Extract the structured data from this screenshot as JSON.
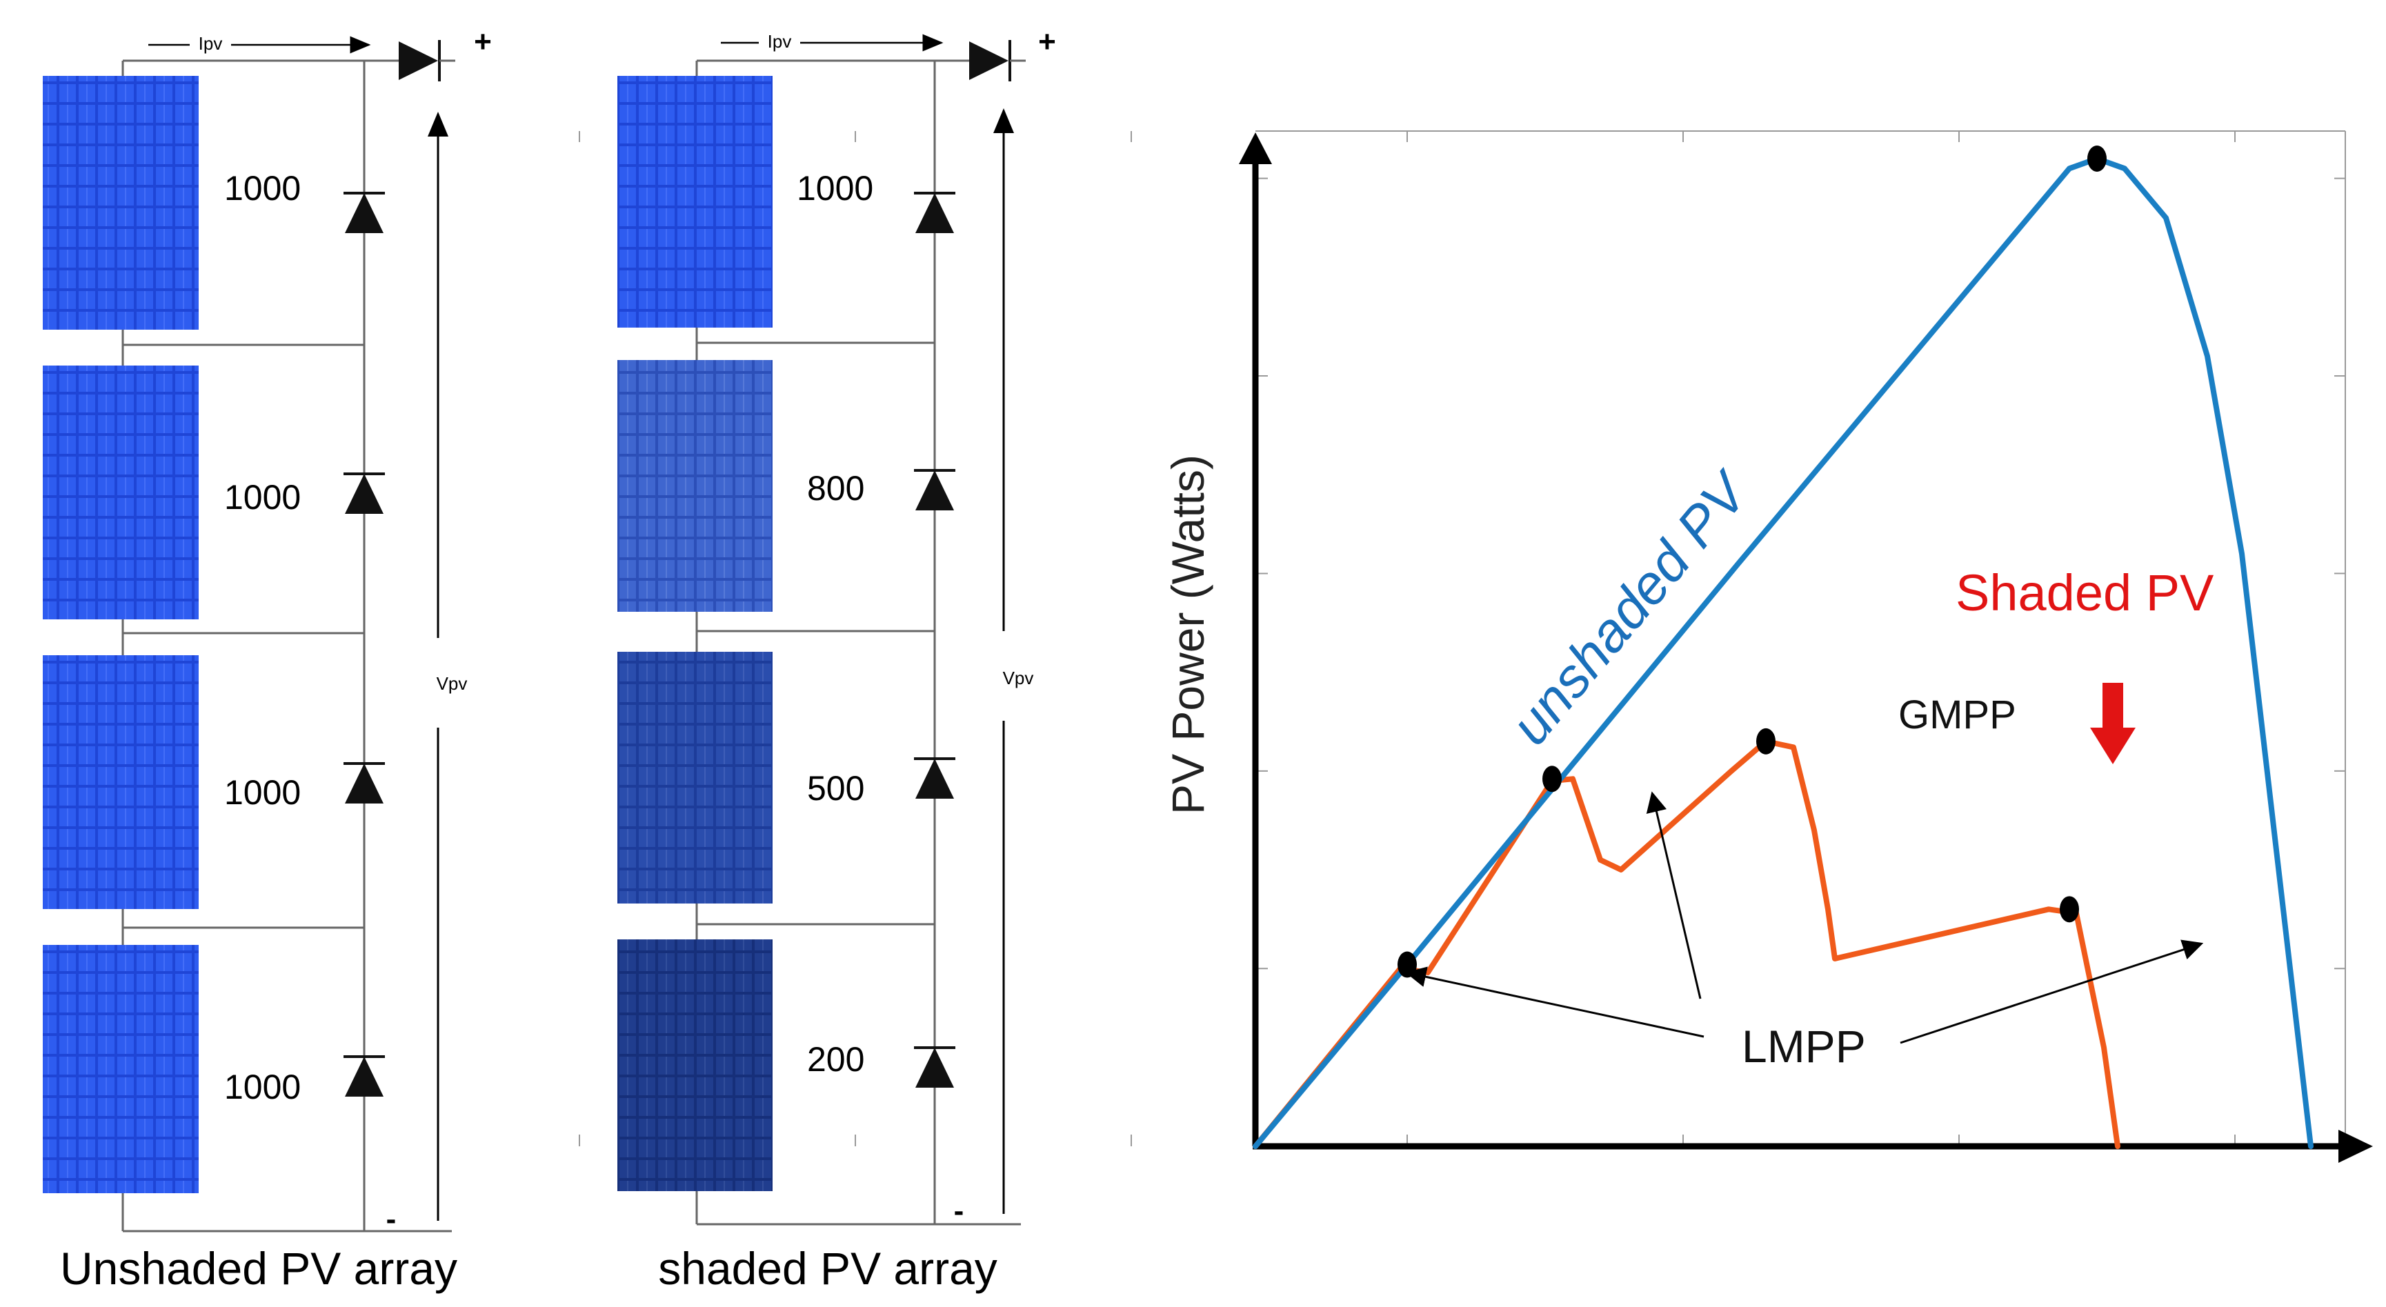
{
  "left_diagrams": {
    "unshaded": {
      "caption": "Unshaded PV array",
      "current_label": "Ipv",
      "voltage_label": "Vpv",
      "plus": "+",
      "minus": "-",
      "irradiance": [
        "1000",
        "1000",
        "1000",
        "1000"
      ]
    },
    "shaded": {
      "caption": "shaded PV array",
      "current_label": "Ipv",
      "voltage_label": "Vpv",
      "plus": "+",
      "minus": "-",
      "irradiance": [
        "1000",
        "800",
        "500",
        "200"
      ]
    }
  },
  "chart_data": {
    "type": "line",
    "title": "",
    "xlabel": "",
    "ylabel": "PV Power (Watts)",
    "xlim": [
      0,
      8
    ],
    "ylim": [
      0,
      5
    ],
    "grid": false,
    "series": [
      {
        "name": "unshaded PV",
        "color": "#1a7fc4",
        "points": [
          [
            0,
            0
          ],
          [
            1.1,
            0.92
          ],
          [
            3.5,
            2.95
          ],
          [
            5.9,
            4.95
          ],
          [
            6.1,
            5.0
          ],
          [
            6.3,
            4.95
          ],
          [
            6.6,
            4.7
          ],
          [
            6.9,
            4.0
          ],
          [
            7.15,
            3.0
          ],
          [
            7.4,
            1.5
          ],
          [
            7.55,
            0.6
          ],
          [
            7.65,
            0
          ]
        ]
      },
      {
        "name": "Shaded PV",
        "color": "#f05a1a",
        "points": [
          [
            0,
            0
          ],
          [
            1.05,
            0.9
          ],
          [
            1.25,
            0.88
          ],
          [
            2.15,
            1.85
          ],
          [
            2.3,
            1.86
          ],
          [
            2.5,
            1.45
          ],
          [
            2.65,
            1.4
          ],
          [
            3.45,
            1.9
          ],
          [
            3.7,
            2.05
          ],
          [
            3.9,
            2.02
          ],
          [
            4.05,
            1.6
          ],
          [
            4.15,
            1.2
          ],
          [
            4.2,
            0.95
          ],
          [
            5.75,
            1.2
          ],
          [
            5.95,
            1.18
          ],
          [
            6.15,
            0.5
          ],
          [
            6.25,
            0.0
          ]
        ]
      }
    ],
    "points_of_interest": [
      {
        "label": "LMPP",
        "x": 1.1,
        "y": 0.92
      },
      {
        "label": "LMPP",
        "x": 2.15,
        "y": 1.86
      },
      {
        "label": "GMPP",
        "x": 3.7,
        "y": 2.05
      },
      {
        "label": "LMPP",
        "x": 5.9,
        "y": 1.2
      },
      {
        "label": "",
        "x": 6.1,
        "y": 5.0
      }
    ],
    "annotations": {
      "unshaded_label": "unshaded PV",
      "shaded_label": "Shaded PV",
      "gmpp_label": "GMPP",
      "lmpp_label": "LMPP",
      "unshaded_color": "#1a7fc4",
      "shaded_color": "#e11414"
    }
  }
}
